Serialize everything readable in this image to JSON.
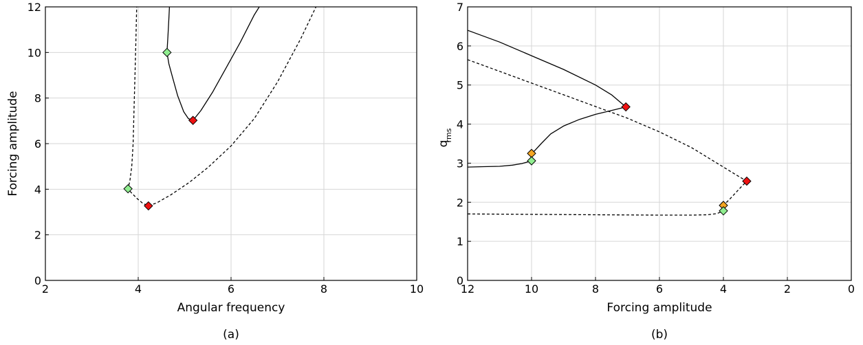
{
  "chart_data": [
    {
      "type": "line",
      "panel_label": "(a)",
      "xlabel": "Angular frequency",
      "ylabel": "Forcing amplitude",
      "xlim": [
        2,
        10
      ],
      "ylim": [
        0,
        12
      ],
      "xticks": [
        "2",
        "4",
        "6",
        "8",
        "10"
      ],
      "yticks": [
        "0",
        "2",
        "4",
        "6",
        "8",
        "10",
        "12"
      ],
      "grid": true,
      "series": [
        {
          "style": "dashed",
          "points": [
            [
              3.97,
              12.3
            ],
            [
              3.95,
              10.5
            ],
            [
              3.93,
              9.0
            ],
            [
              3.91,
              7.5
            ],
            [
              3.89,
              6.0
            ],
            [
              3.86,
              5.0
            ],
            [
              3.82,
              4.35
            ],
            [
              3.78,
              4.02
            ],
            [
              3.85,
              3.85
            ],
            [
              3.97,
              3.6
            ],
            [
              4.1,
              3.38
            ],
            [
              4.22,
              3.27
            ],
            [
              4.4,
              3.4
            ],
            [
              4.7,
              3.75
            ],
            [
              5.1,
              4.3
            ],
            [
              5.5,
              4.95
            ],
            [
              6.0,
              5.9
            ],
            [
              6.5,
              7.1
            ],
            [
              7.0,
              8.7
            ],
            [
              7.5,
              10.6
            ],
            [
              7.9,
              12.3
            ]
          ]
        },
        {
          "style": "solid",
          "points": [
            [
              4.68,
              12.3
            ],
            [
              4.66,
              11.5
            ],
            [
              4.64,
              10.7
            ],
            [
              4.62,
              10.0
            ],
            [
              4.66,
              9.5
            ],
            [
              4.74,
              8.9
            ],
            [
              4.85,
              8.1
            ],
            [
              4.98,
              7.4
            ],
            [
              5.08,
              7.1
            ],
            [
              5.18,
              7.02
            ],
            [
              5.35,
              7.45
            ],
            [
              5.6,
              8.25
            ],
            [
              5.9,
              9.35
            ],
            [
              6.2,
              10.45
            ],
            [
              6.5,
              11.65
            ],
            [
              6.7,
              12.3
            ]
          ]
        }
      ],
      "markers": [
        {
          "x": 3.78,
          "y": 4.02,
          "color": "#90ee90"
        },
        {
          "x": 4.22,
          "y": 3.27,
          "color": "#ee1111"
        },
        {
          "x": 4.62,
          "y": 10.0,
          "color": "#90ee90"
        },
        {
          "x": 5.18,
          "y": 7.02,
          "color": "#ee1111"
        }
      ]
    },
    {
      "type": "line",
      "panel_label": "(b)",
      "xlabel": "Forcing amplitude",
      "ylabel": "q",
      "ylabel_sub": "rms",
      "xlim": [
        12,
        0
      ],
      "ylim": [
        0,
        7
      ],
      "xticks": [
        "12",
        "10",
        "8",
        "6",
        "4",
        "2",
        "0"
      ],
      "yticks": [
        "0",
        "1",
        "2",
        "3",
        "4",
        "5",
        "6",
        "7"
      ],
      "grid": true,
      "series": [
        {
          "style": "solid",
          "points": [
            [
              12.0,
              6.4
            ],
            [
              11.0,
              6.1
            ],
            [
              10.0,
              5.75
            ],
            [
              9.0,
              5.4
            ],
            [
              8.0,
              5.0
            ],
            [
              7.5,
              4.75
            ],
            [
              7.05,
              4.44
            ],
            [
              7.5,
              4.35
            ],
            [
              8.0,
              4.25
            ],
            [
              8.5,
              4.12
            ],
            [
              9.0,
              3.95
            ],
            [
              9.4,
              3.75
            ],
            [
              9.7,
              3.5
            ],
            [
              9.9,
              3.32
            ],
            [
              10.0,
              3.25
            ]
          ]
        },
        {
          "style": "solid",
          "points": [
            [
              12.0,
              2.9
            ],
            [
              11.5,
              2.91
            ],
            [
              11.0,
              2.92
            ],
            [
              10.6,
              2.95
            ],
            [
              10.3,
              2.99
            ],
            [
              10.0,
              3.06
            ]
          ]
        },
        {
          "style": "dashed",
          "points": [
            [
              12.0,
              5.65
            ],
            [
              11.0,
              5.35
            ],
            [
              10.0,
              5.05
            ],
            [
              9.0,
              4.75
            ],
            [
              8.0,
              4.45
            ],
            [
              7.0,
              4.15
            ],
            [
              6.0,
              3.8
            ],
            [
              5.0,
              3.4
            ],
            [
              4.2,
              3.0
            ],
            [
              3.6,
              2.7
            ],
            [
              3.27,
              2.54
            ],
            [
              3.55,
              2.3
            ],
            [
              3.8,
              2.08
            ],
            [
              4.0,
              1.92
            ]
          ]
        },
        {
          "style": "dashed",
          "points": [
            [
              12.0,
              1.7
            ],
            [
              10.0,
              1.69
            ],
            [
              8.0,
              1.68
            ],
            [
              6.0,
              1.67
            ],
            [
              5.0,
              1.67
            ],
            [
              4.5,
              1.68
            ],
            [
              4.2,
              1.71
            ],
            [
              4.0,
              1.78
            ]
          ]
        }
      ],
      "markers": [
        {
          "x": 7.05,
          "y": 4.44,
          "color": "#ee1111"
        },
        {
          "x": 10.0,
          "y": 3.25,
          "color": "#f5a623"
        },
        {
          "x": 10.0,
          "y": 3.06,
          "color": "#90ee90"
        },
        {
          "x": 3.27,
          "y": 2.54,
          "color": "#ee1111"
        },
        {
          "x": 4.0,
          "y": 1.92,
          "color": "#f5a623"
        },
        {
          "x": 4.0,
          "y": 1.78,
          "color": "#90ee90"
        }
      ]
    }
  ]
}
